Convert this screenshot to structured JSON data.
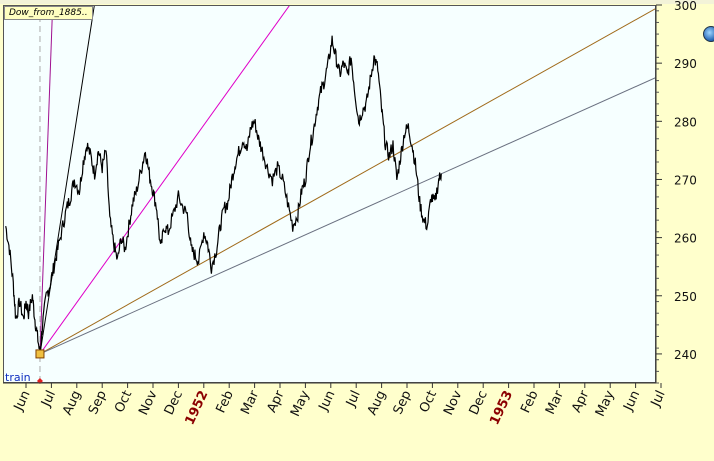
{
  "window": {
    "series_tab": "Dow_from_1885..",
    "train_label": "train"
  },
  "colors": {
    "background": "#ffffcc",
    "plot_background": "#f6ffff",
    "price_line": "#000000",
    "fan_magenta": "#e000c8",
    "fan_purple": "#a01090",
    "fan_black": "#000000",
    "fan_brown": "#a06a1a",
    "fan_gray": "#6a7080",
    "year_label": "#8b0000",
    "anchor_marker": "#f0c040"
  },
  "icons": {
    "globe": "globe-icon"
  },
  "chart_data": {
    "type": "line",
    "title": "",
    "xlabel": "",
    "ylabel": "",
    "ylim": [
      235,
      300
    ],
    "yticks": [
      240,
      250,
      260,
      270,
      280,
      290,
      300
    ],
    "x_axis_labels": [
      {
        "label": "Jun",
        "month_index": 0,
        "year": false
      },
      {
        "label": "Jul",
        "month_index": 1,
        "year": false
      },
      {
        "label": "Aug",
        "month_index": 2,
        "year": false
      },
      {
        "label": "Sep",
        "month_index": 3,
        "year": false
      },
      {
        "label": "Oct",
        "month_index": 4,
        "year": false
      },
      {
        "label": "Nov",
        "month_index": 5,
        "year": false
      },
      {
        "label": "Dec",
        "month_index": 6,
        "year": false
      },
      {
        "label": "1952",
        "month_index": 7,
        "year": true
      },
      {
        "label": "Feb",
        "month_index": 8,
        "year": false
      },
      {
        "label": "Mar",
        "month_index": 9,
        "year": false
      },
      {
        "label": "Apr",
        "month_index": 10,
        "year": false
      },
      {
        "label": "May",
        "month_index": 11,
        "year": false
      },
      {
        "label": "Jun",
        "month_index": 12,
        "year": false
      },
      {
        "label": "Jul",
        "month_index": 13,
        "year": false
      },
      {
        "label": "Aug",
        "month_index": 14,
        "year": false
      },
      {
        "label": "Sep",
        "month_index": 15,
        "year": false
      },
      {
        "label": "Oct",
        "month_index": 16,
        "year": false
      },
      {
        "label": "Nov",
        "month_index": 17,
        "year": false
      },
      {
        "label": "Dec",
        "month_index": 18,
        "year": false
      },
      {
        "label": "1953",
        "month_index": 19,
        "year": true
      },
      {
        "label": "Feb",
        "month_index": 20,
        "year": false
      },
      {
        "label": "Mar",
        "month_index": 21,
        "year": false
      },
      {
        "label": "Apr",
        "month_index": 22,
        "year": false
      },
      {
        "label": "May",
        "month_index": 23,
        "year": false
      },
      {
        "label": "Jun",
        "month_index": 24,
        "year": false
      },
      {
        "label": "Jul",
        "month_index": 25,
        "year": false
      }
    ],
    "series": [
      {
        "points": [
          [
            -0.8,
            262
          ],
          [
            -0.65,
            258
          ],
          [
            -0.5,
            252
          ],
          [
            -0.4,
            246
          ],
          [
            -0.25,
            249
          ],
          [
            -0.1,
            246
          ],
          [
            0.0,
            249
          ],
          [
            0.1,
            247
          ],
          [
            0.25,
            250
          ],
          [
            0.35,
            246
          ],
          [
            0.45,
            243
          ],
          [
            0.55,
            240
          ],
          [
            0.65,
            245
          ],
          [
            0.8,
            250
          ],
          [
            0.95,
            252
          ],
          [
            1.1,
            255
          ],
          [
            1.25,
            258
          ],
          [
            1.45,
            262
          ],
          [
            1.6,
            265
          ],
          [
            1.75,
            267
          ],
          [
            1.9,
            270
          ],
          [
            2.1,
            268
          ],
          [
            2.25,
            273
          ],
          [
            2.4,
            276
          ],
          [
            2.55,
            274
          ],
          [
            2.7,
            271
          ],
          [
            2.85,
            275
          ],
          [
            3.0,
            272
          ],
          [
            3.15,
            275
          ],
          [
            3.3,
            263
          ],
          [
            3.45,
            259
          ],
          [
            3.6,
            256
          ],
          [
            3.75,
            260
          ],
          [
            3.9,
            258
          ],
          [
            4.05,
            262
          ],
          [
            4.2,
            266
          ],
          [
            4.35,
            268
          ],
          [
            4.55,
            272
          ],
          [
            4.7,
            275
          ],
          [
            4.85,
            271
          ],
          [
            5.0,
            268
          ],
          [
            5.15,
            265
          ],
          [
            5.3,
            258
          ],
          [
            5.45,
            262
          ],
          [
            5.6,
            261
          ],
          [
            5.8,
            264
          ],
          [
            6.0,
            267
          ],
          [
            6.2,
            265
          ],
          [
            6.35,
            264
          ],
          [
            6.5,
            258
          ],
          [
            6.65,
            257
          ],
          [
            6.8,
            256
          ],
          [
            7.0,
            261
          ],
          [
            7.15,
            259
          ],
          [
            7.3,
            255
          ],
          [
            7.5,
            258
          ],
          [
            7.65,
            262
          ],
          [
            7.8,
            265
          ],
          [
            7.95,
            266
          ],
          [
            8.1,
            270
          ],
          [
            8.25,
            273
          ],
          [
            8.4,
            275
          ],
          [
            8.55,
            277
          ],
          [
            8.7,
            275
          ],
          [
            8.85,
            279
          ],
          [
            9.0,
            280
          ],
          [
            9.15,
            277
          ],
          [
            9.3,
            275
          ],
          [
            9.5,
            272
          ],
          [
            9.7,
            270
          ],
          [
            9.9,
            272
          ],
          [
            10.1,
            270
          ],
          [
            10.3,
            266
          ],
          [
            10.5,
            262
          ],
          [
            10.7,
            264
          ],
          [
            10.85,
            268
          ],
          [
            11.0,
            270
          ],
          [
            11.15,
            275
          ],
          [
            11.3,
            278
          ],
          [
            11.45,
            282
          ],
          [
            11.6,
            285
          ],
          [
            11.75,
            287
          ],
          [
            11.9,
            290
          ],
          [
            12.05,
            294
          ],
          [
            12.2,
            291
          ],
          [
            12.35,
            288
          ],
          [
            12.5,
            290
          ],
          [
            12.65,
            288
          ],
          [
            12.8,
            291
          ],
          [
            12.95,
            285
          ],
          [
            13.1,
            280
          ],
          [
            13.25,
            282
          ],
          [
            13.4,
            283
          ],
          [
            13.55,
            287
          ],
          [
            13.7,
            291
          ],
          [
            13.85,
            289
          ],
          [
            14.0,
            282
          ],
          [
            14.15,
            276
          ],
          [
            14.3,
            274
          ],
          [
            14.45,
            276
          ],
          [
            14.6,
            270
          ],
          [
            14.75,
            274
          ],
          [
            14.9,
            278
          ],
          [
            15.05,
            279
          ],
          [
            15.2,
            276
          ],
          [
            15.35,
            272
          ],
          [
            15.5,
            266
          ],
          [
            15.65,
            263
          ],
          [
            15.8,
            262
          ],
          [
            15.95,
            267
          ],
          [
            16.1,
            266
          ],
          [
            16.25,
            270
          ],
          [
            16.35,
            271
          ]
        ],
        "y_values_note": ""
      }
    ],
    "fan_lines": [
      {
        "color_key": "fan_purple",
        "slope": 120
      },
      {
        "color_key": "fan_black",
        "slope": 28
      },
      {
        "color_key": "fan_magenta",
        "slope": 6.1
      },
      {
        "color_key": "fan_brown",
        "slope": 2.45
      },
      {
        "color_key": "fan_gray",
        "slope": 1.96
      }
    ],
    "fan_anchor": {
      "x": 0.55,
      "y": 240
    },
    "grid": false
  }
}
